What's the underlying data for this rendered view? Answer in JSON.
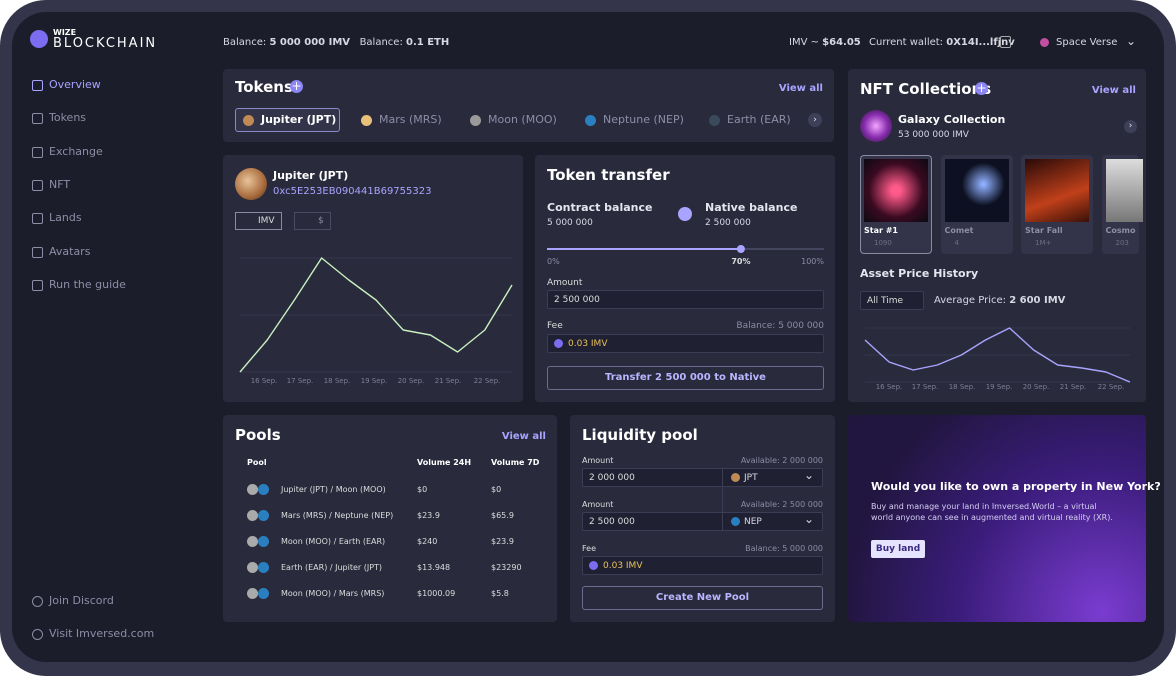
{
  "brand": {
    "line1": "WIZE",
    "line2": "BLOCKCHAIN"
  },
  "topbar": {
    "balance_label": "Balance:",
    "balance_imv": "5 000 000 IMV",
    "balance_label_2": "Balance:",
    "balance_eth": "0.1 ETH",
    "imv_price_label": "IMV ~",
    "imv_price": "$64.05",
    "wallet_label": "Current wallet:",
    "wallet": "0X14I...lfjnv",
    "universe": "Space Verse"
  },
  "sidebar": {
    "menu": [
      "Overview",
      "Tokens",
      "Exchange",
      "NFT",
      "Lands",
      "Avatars",
      "Run the guide"
    ],
    "footer": [
      "Join Discord",
      "Visit Imversed.com"
    ]
  },
  "tokens": {
    "title": "Tokens",
    "view_all": "View all",
    "tabs": [
      "Jupiter (JPT)",
      "Mars (MRS)",
      "Moon (MOO)",
      "Neptune (NEP)",
      "Earth (EAR)"
    ]
  },
  "token_chart": {
    "name": "Jupiter (JPT)",
    "address": "0xc5E253EB090441B69755323",
    "toggles": [
      "IMV",
      "$"
    ],
    "x_labels": [
      "16 Sep.",
      "17 Sep.",
      "18 Sep.",
      "19 Sep.",
      "20 Sep.",
      "21 Sep.",
      "22 Sep."
    ],
    "values": [
      8,
      40,
      80,
      122,
      100,
      80,
      50,
      45,
      28,
      50,
      95
    ]
  },
  "transfer": {
    "title": "Token transfer",
    "contract_label": "Contract balance",
    "contract_value": "5 000 000",
    "native_label": "Native balance",
    "native_value": "2 500 000",
    "slider": [
      {
        "value": 0,
        "label": "0%"
      },
      {
        "value": 70,
        "label": "70%"
      },
      {
        "value": 100,
        "label": "100%"
      }
    ],
    "amount_label": "Amount",
    "amount": "2 500 000",
    "fee_label": "Fee",
    "balance": "Balance: 5 000 000",
    "fee": "0.03 IMV",
    "button": "Transfer 2 500 000 to Native"
  },
  "nft": {
    "title": "NFT Collections",
    "view_all": "View all",
    "collection": "Galaxy Collection",
    "collection_value": "53 000 000 IMV",
    "cards": [
      {
        "name": "Star #1",
        "views": "1090"
      },
      {
        "name": "Comet",
        "views": "4"
      },
      {
        "name": "Star Fall",
        "views": "1M+"
      },
      {
        "name": "Cosmo",
        "views": "203"
      }
    ]
  },
  "price_history": {
    "title": "Asset Price History",
    "range": "All Time",
    "average_label": "Average Price:",
    "average": "2 600 IMV",
    "x_labels": [
      "16 Sep.",
      "17 Sep.",
      "18 Sep.",
      "19 Sep.",
      "20 Sep.",
      "21 Sep.",
      "22 Sep."
    ],
    "values": [
      50,
      28,
      20,
      25,
      35,
      50,
      62,
      40,
      25,
      22,
      18,
      8
    ]
  },
  "pools": {
    "title": "Pools",
    "view_all": "View all",
    "columns": [
      "Pool",
      "Volume 24H",
      "Volume 7D"
    ],
    "rows": [
      [
        "Jupiter (JPT) / Moon (MOO)",
        "$0",
        "$0"
      ],
      [
        "Mars (MRS) / Neptune (NEP)",
        "$23.9",
        "$65.9"
      ],
      [
        "Moon (MOO) / Earth (EAR)",
        "$240",
        "$23.9"
      ],
      [
        "Earth (EAR) / Jupiter (JPT)",
        "$13.948",
        "$23290"
      ],
      [
        "Moon (MOO) / Mars (MRS)",
        "$1000.09",
        "$5.8"
      ]
    ]
  },
  "liquidity": {
    "title": "Liquidity pool",
    "amount_label": "Amount",
    "available_1": "Available: 2 000 000",
    "amount_1": "2 000 000",
    "token_1": "JPT",
    "amount_label_2": "Amount",
    "available_2": "Available: 2 500 000",
    "amount_2": "2 500 000",
    "token_2": "NEP",
    "fee_label": "Fee",
    "balance": "Balance: 5 000 000",
    "fee": "0.03 IMV",
    "button": "Create New Pool"
  },
  "promo": {
    "title": "Would you like to own a property in New York?",
    "text": "Buy and manage your land in Imversed.World – a virtual world anyone can see in augmented and virtual reality (XR).",
    "button": "Buy land"
  }
}
